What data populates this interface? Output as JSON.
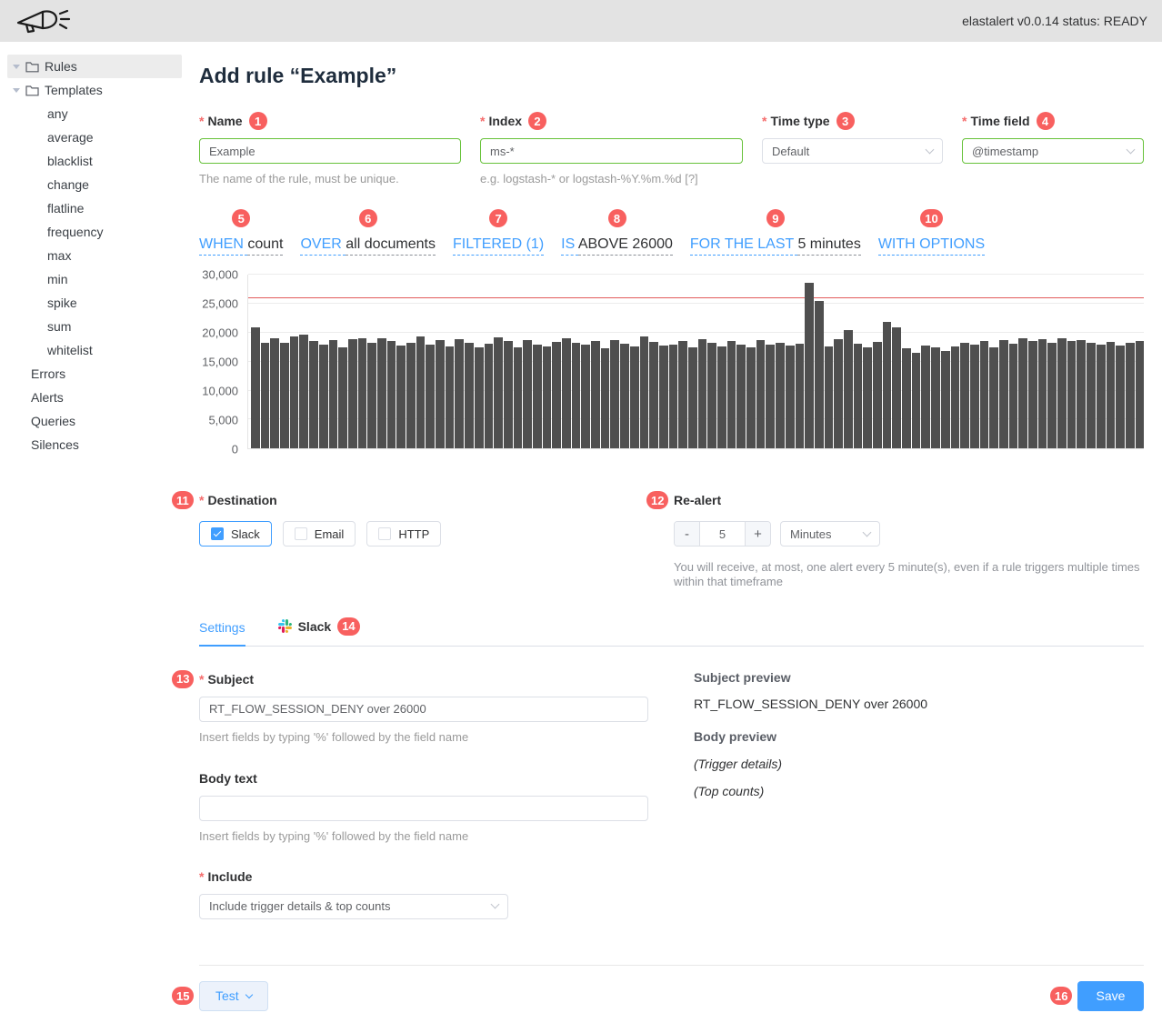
{
  "topbar": {
    "logo": "praeco-logo",
    "status_text": "elastalert v0.0.14 status: READY"
  },
  "sidebar": {
    "items": [
      {
        "label": "Rules",
        "icon": "folder",
        "caret": true,
        "selected": true,
        "indent": 0
      },
      {
        "label": "Templates",
        "icon": "folder",
        "caret": true,
        "selected": false,
        "indent": 0
      },
      {
        "label": "any",
        "indent": 1
      },
      {
        "label": "average",
        "indent": 1
      },
      {
        "label": "blacklist",
        "indent": 1
      },
      {
        "label": "change",
        "indent": 1
      },
      {
        "label": "flatline",
        "indent": 1
      },
      {
        "label": "frequency",
        "indent": 1
      },
      {
        "label": "max",
        "indent": 1
      },
      {
        "label": "min",
        "indent": 1
      },
      {
        "label": "spike",
        "indent": 1
      },
      {
        "label": "sum",
        "indent": 1
      },
      {
        "label": "whitelist",
        "indent": 1
      },
      {
        "label": "Errors",
        "indent": 0
      },
      {
        "label": "Alerts",
        "indent": 0
      },
      {
        "label": "Queries",
        "indent": 0
      },
      {
        "label": "Silences",
        "indent": 0
      }
    ]
  },
  "page_title": "Add rule “Example”",
  "required_marker": "*",
  "form": {
    "fields": [
      {
        "label": "Name",
        "badge": "1",
        "value": "Example",
        "help": "The name of the rule, must be unique."
      },
      {
        "label": "Index",
        "badge": "2",
        "value": "ms-*",
        "help": "e.g. logstash-* or logstash-%Y.%m.%d [?]"
      },
      {
        "label": "Time type",
        "badge": "3",
        "value": "Default"
      },
      {
        "label": "Time field",
        "badge": "4",
        "value": "@timestamp"
      }
    ]
  },
  "query_builder": {
    "phrases": [
      {
        "badge": "5",
        "segments": [
          {
            "text": "WHEN ",
            "link": true
          },
          {
            "text": "count",
            "link": false
          }
        ]
      },
      {
        "badge": "6",
        "segments": [
          {
            "text": "OVER ",
            "link": true
          },
          {
            "text": "all documents",
            "link": false
          }
        ]
      },
      {
        "badge": "7",
        "segments": [
          {
            "text": "FILTERED (1)",
            "link": true
          }
        ]
      },
      {
        "badge": "8",
        "segments": [
          {
            "text": "IS ",
            "link": true
          },
          {
            "text": "ABOVE 26000",
            "link": false
          }
        ]
      },
      {
        "badge": "9",
        "segments": [
          {
            "text": "FOR THE LAST ",
            "link": true
          },
          {
            "text": "5 minutes",
            "link": false
          }
        ]
      },
      {
        "badge": "10",
        "segments": [
          {
            "text": "WITH OPTIONS",
            "link": true
          }
        ]
      }
    ]
  },
  "chart_data": {
    "type": "bar",
    "title": "",
    "xlabel": "",
    "ylabel": "",
    "ylim": [
      0,
      30000
    ],
    "yticks": [
      0,
      5000,
      10000,
      15000,
      20000,
      25000,
      30000
    ],
    "ytick_labels": [
      "0",
      "5,000",
      "10,000",
      "15,000",
      "20,000",
      "25,000",
      "30,000"
    ],
    "threshold": 26000,
    "bar_color": "#4f4f4f",
    "threshold_color": "#e25c5c",
    "grid": true,
    "legend": false,
    "values": [
      21000,
      18300,
      19000,
      18200,
      19400,
      19600,
      18500,
      17900,
      18700,
      17400,
      18900,
      19100,
      18300,
      19000,
      18500,
      17800,
      18200,
      19400,
      18000,
      18700,
      17600,
      18900,
      18300,
      17500,
      18100,
      19200,
      18600,
      17400,
      18800,
      18000,
      17700,
      18400,
      19000,
      18200,
      17900,
      18500,
      17300,
      18800,
      18100,
      17600,
      19300,
      18400,
      17800,
      18000,
      18600,
      17500,
      18900,
      18200,
      17700,
      18500,
      18000,
      17400,
      18700,
      17900,
      18300,
      17800,
      18100,
      28600,
      25500,
      17700,
      18900,
      20400,
      18100,
      17500,
      18400,
      21900,
      21000,
      17300,
      16600,
      17800,
      17400,
      16900,
      17600,
      18200,
      17900,
      18500,
      17500,
      18800,
      18100,
      19100,
      18600,
      18900,
      18300,
      19000,
      18500,
      18800,
      18200,
      17900,
      18400,
      17800,
      18300,
      18600
    ]
  },
  "destination": {
    "label": "Destination",
    "badge": "11",
    "options": [
      {
        "label": "Slack",
        "checked": true
      },
      {
        "label": "Email",
        "checked": false
      },
      {
        "label": "HTTP",
        "checked": false
      }
    ]
  },
  "realert": {
    "label": "Re-alert",
    "badge": "12",
    "minus": "-",
    "value": "5",
    "plus": "+",
    "unit": "Minutes",
    "help": "You will receive, at most, one alert every 5 minute(s), even if a rule triggers multiple times within that timeframe"
  },
  "tabs": {
    "settings": "Settings",
    "slack": "Slack",
    "slack_badge": "14"
  },
  "settings": {
    "subject": {
      "label": "Subject",
      "badge": "13",
      "value": "RT_FLOW_SESSION_DENY over 26000",
      "help": "Insert fields by typing '%' followed by the field name"
    },
    "body": {
      "label": "Body text",
      "value": "",
      "help": "Insert fields by typing '%' followed by the field name"
    },
    "include": {
      "label": "Include",
      "value": "Include trigger details & top counts"
    }
  },
  "preview": {
    "subject_title": "Subject preview",
    "subject_value": "RT_FLOW_SESSION_DENY over 26000",
    "body_title": "Body preview",
    "body_lines": [
      "(Trigger details)",
      "(Top counts)"
    ]
  },
  "footer": {
    "test_label": "Test",
    "test_badge": "15",
    "save_label": "Save",
    "save_badge": "16"
  },
  "colors": {
    "primary": "#409eff",
    "success": "#67c23a",
    "badge": "#f8605f",
    "bar": "#4f4f4f",
    "threshold": "#e25c5c",
    "topbar_bg": "#e3e3e3"
  }
}
